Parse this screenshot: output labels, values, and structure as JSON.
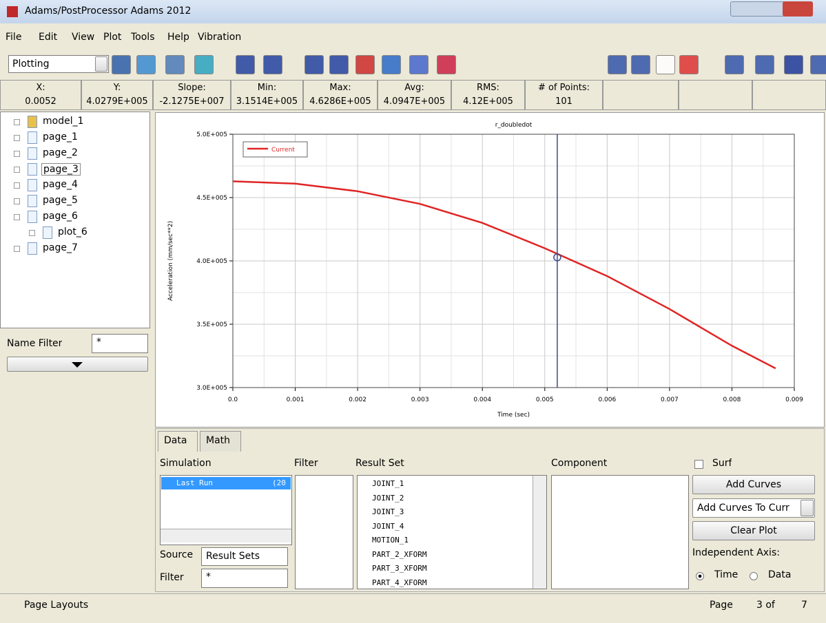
{
  "window": {
    "title": "Adams/PostProcessor Adams 2012"
  },
  "menu": [
    "File",
    "Edit",
    "View",
    "Plot",
    "Tools",
    "Help",
    "Vibration"
  ],
  "toolbar": {
    "mode": "Plotting"
  },
  "readout": {
    "headers": [
      "X:",
      "Y:",
      "Slope:",
      "Min:",
      "Max:",
      "Avg:",
      "RMS:",
      "# of Points:"
    ],
    "values": [
      "0.0052",
      "4.0279E+005",
      "-2.1275E+007",
      "3.1514E+005",
      "4.6286E+005",
      "4.0947E+005",
      "4.12E+005",
      "101"
    ]
  },
  "tree": {
    "items": [
      "model_1",
      "page_1",
      "page_2",
      "page_3",
      "page_4",
      "page_5",
      "page_6",
      "plot_6",
      "page_7"
    ]
  },
  "name_filter": {
    "label": "Name Filter",
    "value": "*"
  },
  "chart_data": {
    "type": "line",
    "title": "r_doubledot",
    "x_label": "Time (sec)",
    "y_label": "Acceleration (mm/sec**2)",
    "x": [
      0,
      0.001,
      0.002,
      0.003,
      0.004,
      0.005,
      0.006,
      0.007,
      0.008,
      0.0087
    ],
    "series": [
      {
        "name": "Current",
        "color": "#e02424",
        "values": [
          462860,
          461000,
          455000,
          445000,
          430000,
          410000,
          388000,
          362000,
          333000,
          315140
        ]
      }
    ],
    "cursor": {
      "x": 0.0052,
      "y": 402790
    },
    "xlim": [
      0,
      0.009
    ],
    "ylim": [
      300000,
      500000
    ],
    "xticks": [
      {
        "value": 0,
        "label": "0.0"
      },
      0.001,
      0.002,
      0.003,
      0.004,
      0.005,
      0.006,
      0.007,
      0.008,
      0.009
    ],
    "yticks": [
      {
        "value": 300000,
        "label": "3.0E+005"
      },
      {
        "value": 350000,
        "label": "3.5E+005"
      },
      {
        "value": 400000,
        "label": "4.0E+005"
      },
      {
        "value": 450000,
        "label": "4.5E+005"
      },
      {
        "value": 500000,
        "label": "5.0E+005"
      }
    ],
    "grid": true,
    "legend": "upper left"
  },
  "panel": {
    "tabs": [
      "Data",
      "Math"
    ],
    "headings": [
      "Simulation",
      "Filter",
      "Result Set",
      "Component"
    ],
    "simulation_items": [
      "Last Run",
      "(20"
    ],
    "source": {
      "label": "Source",
      "value": "Result Sets"
    },
    "filter": {
      "label": "Filter",
      "value": "*"
    },
    "result_sets": [
      "JOINT_1",
      "JOINT_2",
      "JOINT_3",
      "JOINT_4",
      "MOTION_1",
      "PART_2_XFORM",
      "PART_3_XFORM",
      "PART_4_XFORM"
    ],
    "surf": "Surf",
    "buttons": [
      "Add Curves",
      "Add Curves To Curr",
      "Clear Plot"
    ],
    "independent_axis": {
      "label": "Independent Axis:",
      "options": [
        "Time",
        "Data"
      ]
    }
  },
  "status": {
    "left": "Page Layouts",
    "page_label": "Page",
    "page_of": "3 of",
    "page_total": "7"
  }
}
